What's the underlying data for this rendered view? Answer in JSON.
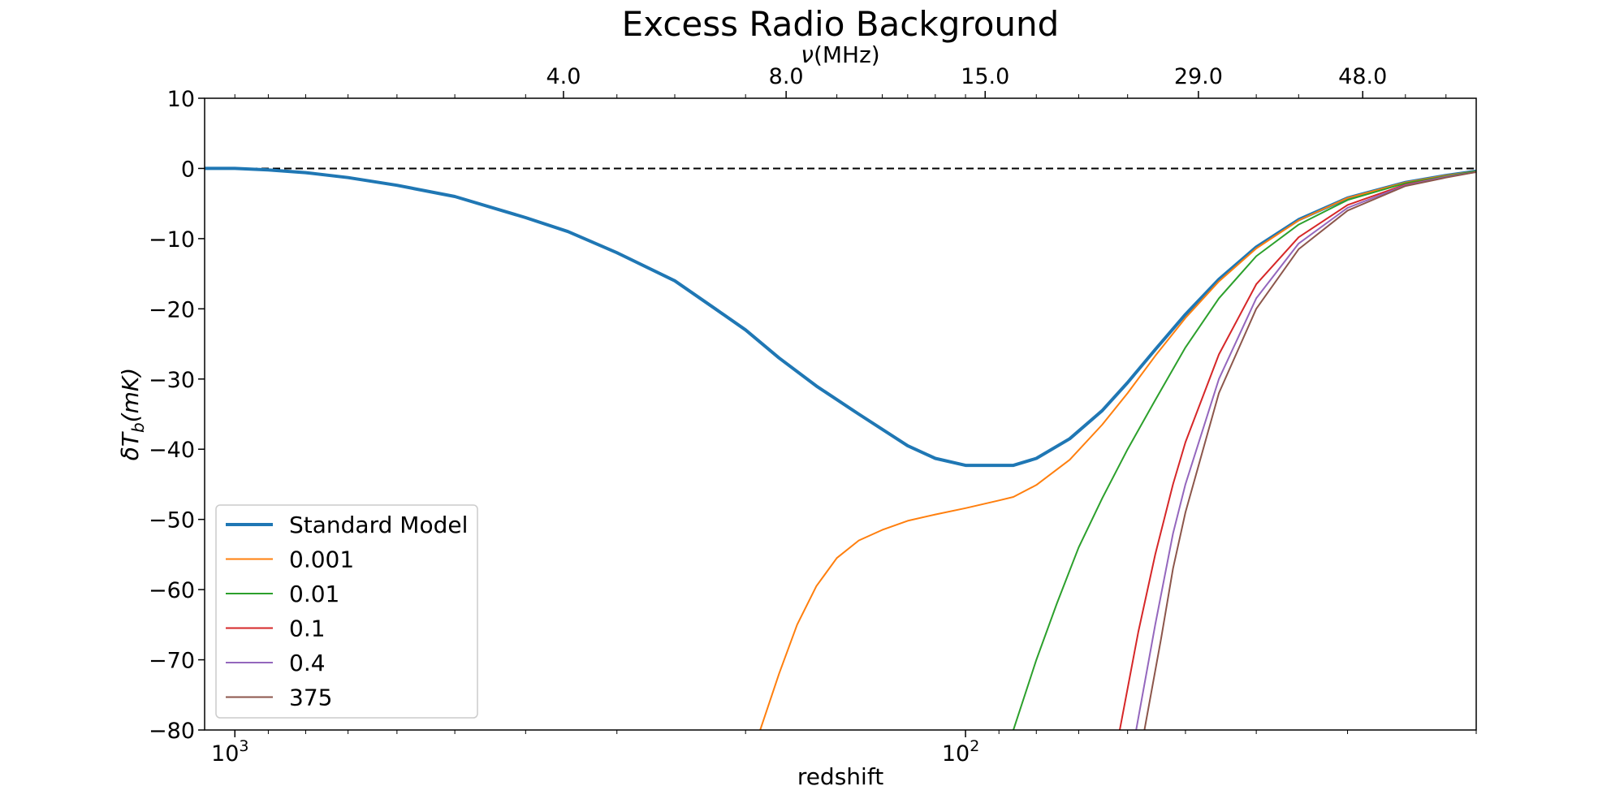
{
  "chart_data": {
    "type": "line",
    "title": "Excess Radio Background",
    "xlabel": "redshift",
    "ylabel": "δT_b(mK)",
    "ylabel_main": "δT",
    "ylabel_sub": "b",
    "ylabel_unit": "(mK)",
    "top_xlabel": "ν(MHz)",
    "top_xlabel_symbol": "ν",
    "top_xlabel_unit": "(MHz)",
    "x_scale": "log",
    "x_inverted": true,
    "xlim": [
      1100,
      20
    ],
    "ylim": [
      -80,
      10
    ],
    "y_ticks": [
      10,
      0,
      -10,
      -20,
      -30,
      -40,
      -50,
      -60,
      -70,
      -80
    ],
    "y_tick_labels": [
      "10",
      "0",
      "−10",
      "−20",
      "−30",
      "−40",
      "−50",
      "−60",
      "−70",
      "−80"
    ],
    "x_major_ticks": [
      {
        "value": 1000,
        "base": "10",
        "exp": "3"
      },
      {
        "value": 100,
        "base": "10",
        "exp": "2"
      }
    ],
    "top_ticks": [
      {
        "z": 355,
        "label": "4.0"
      },
      {
        "z": 176,
        "label": "8.0"
      },
      {
        "z": 94,
        "label": "15.0"
      },
      {
        "z": 48,
        "label": "29.0"
      },
      {
        "z": 28.6,
        "label": "48.0"
      }
    ],
    "reference_line": {
      "y": 0,
      "style": "dashed",
      "color": "#000000"
    },
    "legend_position": "lower-left",
    "series": [
      {
        "name": "Standard Model",
        "color": "#1f77b4",
        "width": 4,
        "x": [
          1100,
          1000,
          900,
          800,
          700,
          600,
          500,
          400,
          350,
          300,
          250,
          220,
          200,
          180,
          160,
          140,
          120,
          110,
          100,
          90,
          86,
          80,
          72,
          65,
          60,
          55,
          50,
          45,
          40,
          35,
          30,
          25,
          22,
          20
        ],
        "y": [
          0,
          0,
          -0.2,
          -0.6,
          -1.3,
          -2.4,
          -4.0,
          -7.0,
          -9.0,
          -12.0,
          -16.0,
          -20.0,
          -23.0,
          -27.0,
          -31.0,
          -35.0,
          -39.5,
          -41.3,
          -42.3,
          -42.3,
          -42.3,
          -41.3,
          -38.5,
          -34.5,
          -30.5,
          -25.8,
          -20.8,
          -15.8,
          -11.2,
          -7.3,
          -4.2,
          -2.0,
          -1.0,
          -0.4
        ]
      },
      {
        "name": "0.001",
        "color": "#ff7f0e",
        "width": 2,
        "x": [
          191,
          180,
          170,
          160,
          150,
          140,
          130,
          120,
          110,
          100,
          90,
          86,
          80,
          72,
          65,
          60,
          55,
          50,
          45,
          40,
          35,
          30,
          25,
          22,
          20
        ],
        "y": [
          -80,
          -72,
          -65,
          -59.5,
          -55.5,
          -53,
          -51.5,
          -50.2,
          -49.3,
          -48.4,
          -47.3,
          -46.8,
          -45.1,
          -41.5,
          -36.5,
          -32,
          -26.7,
          -21.3,
          -16.1,
          -11.4,
          -7.4,
          -4.2,
          -2.0,
          -1.0,
          -0.4
        ]
      },
      {
        "name": "0.01",
        "color": "#2ca02c",
        "width": 2,
        "x": [
          86,
          80,
          75,
          70,
          65,
          60,
          55,
          50,
          45,
          40,
          35,
          30,
          25,
          22,
          20
        ],
        "y": [
          -80,
          -70,
          -62,
          -54,
          -47,
          -40,
          -33,
          -25.5,
          -18.5,
          -12.5,
          -8,
          -4.5,
          -2.1,
          -1.1,
          -0.4
        ]
      },
      {
        "name": "0.1",
        "color": "#d62728",
        "width": 2,
        "x": [
          61.5,
          58,
          55,
          52,
          50,
          45,
          40,
          35,
          30,
          25,
          22,
          20
        ],
        "y": [
          -80,
          -66,
          -55,
          -45,
          -39,
          -26.5,
          -16.5,
          -9.8,
          -5.2,
          -2.3,
          -1.2,
          -0.5
        ]
      },
      {
        "name": "0.4",
        "color": "#9467bd",
        "width": 2,
        "x": [
          58.4,
          55,
          52,
          50,
          45,
          40,
          35,
          30,
          25,
          22,
          20
        ],
        "y": [
          -80,
          -65,
          -52,
          -45,
          -30,
          -18.5,
          -10.7,
          -5.6,
          -2.4,
          -1.2,
          -0.5
        ]
      },
      {
        "name": "375",
        "color": "#8c564b",
        "width": 2,
        "x": [
          56.9,
          54,
          52,
          50,
          45,
          40,
          35,
          30,
          25,
          22,
          20
        ],
        "y": [
          -80,
          -67,
          -57,
          -49,
          -32,
          -20,
          -11.5,
          -6,
          -2.5,
          -1.3,
          -0.5
        ]
      }
    ]
  }
}
